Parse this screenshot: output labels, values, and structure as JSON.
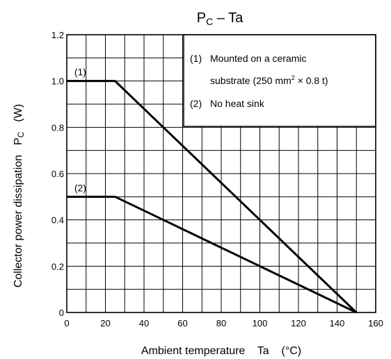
{
  "chart_data": {
    "type": "line",
    "title": {
      "main": "P",
      "sub": "C",
      "rest": " – Ta"
    },
    "xlabel": "Ambient temperature    Ta    (°C)",
    "ylabel": {
      "text": "Collector power dissipation",
      "symbol": "P",
      "symbol_sub": "C",
      "unit": "(W)"
    },
    "xlim": [
      0,
      160
    ],
    "ylim": [
      0,
      1.2
    ],
    "x_ticks": [
      0,
      20,
      40,
      60,
      80,
      100,
      120,
      140,
      160
    ],
    "x_tick_labels": [
      "0",
      "20",
      "40",
      "60",
      "80",
      "100",
      "120",
      "140",
      "160"
    ],
    "y_ticks": [
      0,
      0.2,
      0.4,
      0.6,
      0.8,
      1.0,
      1.2
    ],
    "y_tick_labels": [
      "0",
      "0.2",
      "0.4",
      "0.6",
      "0.8",
      "1.0",
      "1.2"
    ],
    "grid": true,
    "grid_x_step": 10,
    "grid_y_step": 0.1,
    "series": [
      {
        "name": "(1)",
        "x": [
          0,
          25,
          150
        ],
        "y": [
          1.0,
          1.0,
          0
        ]
      },
      {
        "name": "(2)",
        "x": [
          0,
          25,
          150
        ],
        "y": [
          0.5,
          0.5,
          0
        ]
      }
    ],
    "legend": {
      "placement": "top-right",
      "lines": [
        {
          "marker": "(1)",
          "text": "Mounted on a ceramic"
        },
        {
          "marker": "",
          "text": "substrate (250 mm",
          "sup": "2",
          "text_after": " × 0.8 t)"
        },
        {
          "marker": "(2)",
          "text": "No heat sink"
        }
      ]
    },
    "line_color": "#000000",
    "line_width_note": "thick"
  }
}
